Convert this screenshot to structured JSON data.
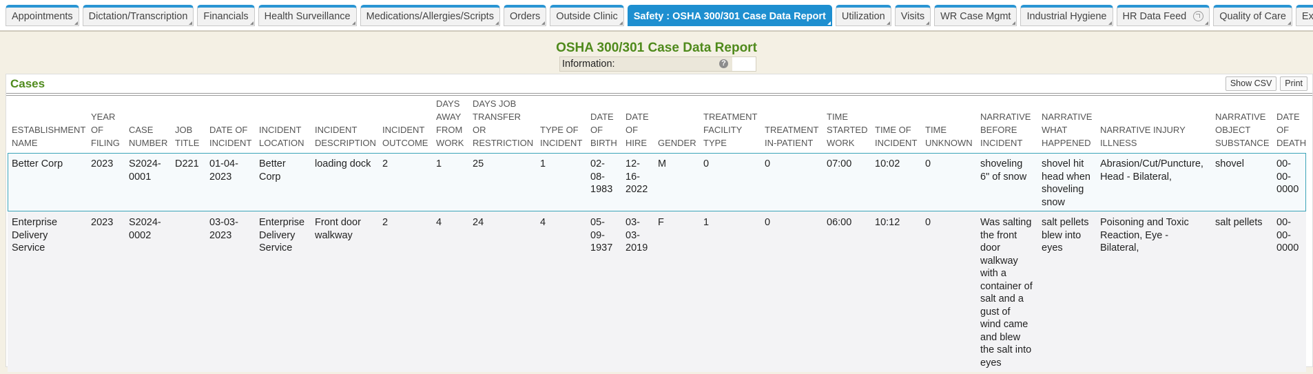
{
  "tabs": [
    {
      "label": "Appointments"
    },
    {
      "label": "Dictation/Transcription"
    },
    {
      "label": "Financials"
    },
    {
      "label": "Health Surveillance"
    },
    {
      "label": "Medications/Allergies/Scripts"
    },
    {
      "label": "Orders"
    },
    {
      "label": "Outside Clinic"
    },
    {
      "label": "Safety : OSHA 300/301 Case Data Report",
      "active": true
    },
    {
      "label": "Utilization"
    },
    {
      "label": "Visits"
    },
    {
      "label": "WR Case Mgmt"
    },
    {
      "label": "Industrial Hygiene"
    },
    {
      "label": "HR Data Feed",
      "icon": true
    },
    {
      "label": "Quality of Care"
    },
    {
      "label": "Executive Dashboard",
      "icon": true
    }
  ],
  "report": {
    "title": "OSHA 300/301 Case Data Report",
    "info_label": "Information:"
  },
  "cases": {
    "title": "Cases",
    "buttons": [
      "Show CSV",
      "Print"
    ],
    "columns": [
      "ESTABLISHMENT NAME",
      "YEAR OF FILING",
      "CASE NUMBER",
      "JOB TITLE",
      "DATE OF INCIDENT",
      "INCIDENT LOCATION",
      "INCIDENT DESCRIPTION",
      "INCIDENT OUTCOME",
      "DAYS AWAY FROM WORK",
      "DAYS JOB TRANSFER OR RESTRICTION",
      "TYPE OF INCIDENT",
      "DATE OF BIRTH",
      "DATE OF HIRE",
      "GENDER",
      "TREATMENT FACILITY TYPE",
      "TREATMENT IN-PATIENT",
      "TIME STARTED WORK",
      "TIME OF INCIDENT",
      "TIME UNKNOWN",
      "NARRATIVE BEFORE INCIDENT",
      "NARRATIVE WHAT HAPPENED",
      "NARRATIVE INJURY ILLNESS",
      "NARRATIVE OBJECT SUBSTANCE",
      "DATE OF DEATH"
    ],
    "rows": [
      [
        "Better Corp",
        2023,
        "S2024-0001",
        "D221",
        "01-04-2023",
        "Better Corp",
        "loading dock",
        2,
        1,
        25,
        1,
        "02-08-1983",
        "12-16-2022",
        "M",
        0,
        0,
        "07:00",
        "10:02",
        0,
        "shoveling 6\" of snow",
        "shovel hit head when shoveling snow",
        "Abrasion/Cut/Puncture, Head - Bilateral,",
        "shovel",
        "00-00-0000"
      ],
      [
        "Enterprise Delivery Service",
        2023,
        "S2024-0002",
        null,
        "03-03-2023",
        "Enterprise Delivery Service",
        "Front door walkway",
        2,
        4,
        24,
        4,
        "05-09-1937",
        "03-03-2019",
        "F",
        1,
        0,
        "06:00",
        "10:12",
        0,
        "Was salting the front door walkway with a container of salt and a gust of wind came and blew the salt into eyes",
        "salt pellets blew into eyes",
        "Poisoning and Toxic Reaction, Eye - Bilateral,",
        "salt pellets",
        "00-00-0000"
      ]
    ]
  }
}
